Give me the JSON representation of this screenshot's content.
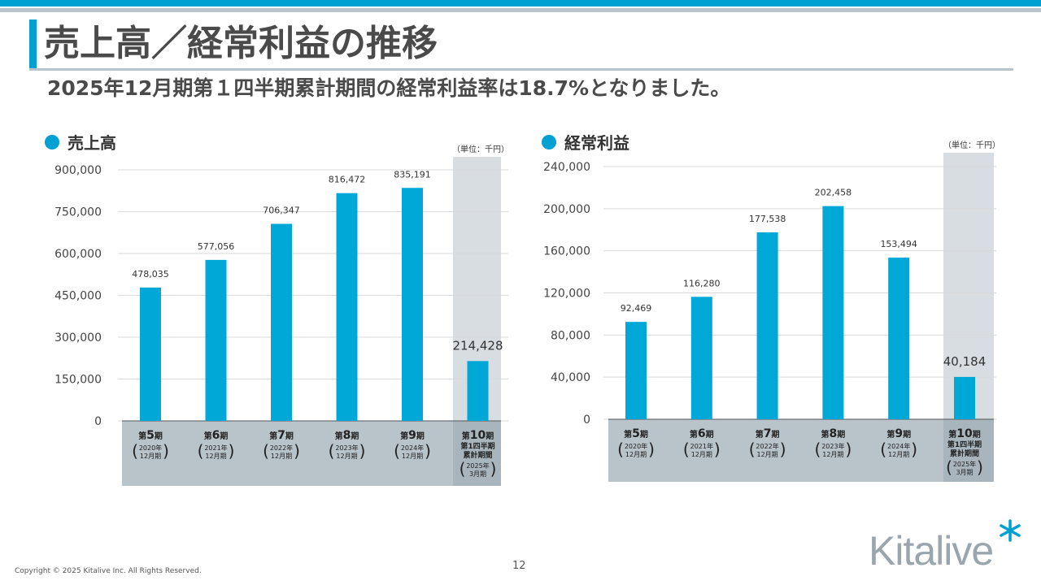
{
  "header": {
    "title": "売上高／経常利益の推移",
    "subtitle": "2025年12月期第１四半期累計期間の経常利益率は18.7%となりました。"
  },
  "colors": {
    "accent": "#00a0d2",
    "bar": "#00a8d8",
    "axis_band": "#b9c3ca",
    "highlight_band": "#d7dde1"
  },
  "footer": {
    "copyright": "Copyright © 2025 Kitalive Inc. All Rights Reserved.",
    "page_number": "12",
    "logo": "Kitalive"
  },
  "categories": [
    {
      "prefix": "第",
      "num": "5",
      "suffix": "期",
      "detail": [
        "2020年",
        "12月期"
      ]
    },
    {
      "prefix": "第",
      "num": "6",
      "suffix": "期",
      "detail": [
        "2021年",
        "12月期"
      ]
    },
    {
      "prefix": "第",
      "num": "7",
      "suffix": "期",
      "detail": [
        "2022年",
        "12月期"
      ]
    },
    {
      "prefix": "第",
      "num": "8",
      "suffix": "期",
      "detail": [
        "2023年",
        "12月期"
      ]
    },
    {
      "prefix": "第",
      "num": "9",
      "suffix": "期",
      "detail": [
        "2024年",
        "12月期"
      ]
    },
    {
      "prefix": "第",
      "num": "10",
      "suffix": "期",
      "extra": [
        "第1四半期",
        "累計期間"
      ],
      "detail": [
        "2025年",
        "3月期"
      ]
    }
  ],
  "chart_data": [
    {
      "type": "bar",
      "title": "売上高",
      "unit": "（単位：千円）",
      "categories": [
        "第5期",
        "第6期",
        "第7期",
        "第8期",
        "第9期",
        "第10期 第1四半期累計期間"
      ],
      "values": [
        478035,
        577056,
        706347,
        816472,
        835191,
        214428
      ],
      "value_labels": [
        "478,035",
        "577,056",
        "706,347",
        "816,472",
        "835,191",
        "214,428"
      ],
      "ylim": [
        0,
        900000
      ],
      "yticks": [
        0,
        150000,
        300000,
        450000,
        600000,
        750000,
        900000
      ],
      "ytick_labels": [
        "0",
        "150,000",
        "300,000",
        "450,000",
        "600,000",
        "750,000",
        "900,000"
      ],
      "highlight_last": true,
      "grid": true
    },
    {
      "type": "bar",
      "title": "経常利益",
      "unit": "（単位：千円）",
      "categories": [
        "第5期",
        "第6期",
        "第7期",
        "第8期",
        "第9期",
        "第10期 第1四半期累計期間"
      ],
      "values": [
        92469,
        116280,
        177538,
        202458,
        153494,
        40184
      ],
      "value_labels": [
        "92,469",
        "116,280",
        "177,538",
        "202,458",
        "153,494",
        "40,184"
      ],
      "ylim": [
        0,
        240000
      ],
      "yticks": [
        0,
        40000,
        80000,
        120000,
        160000,
        200000,
        240000
      ],
      "ytick_labels": [
        "0",
        "40,000",
        "80,000",
        "120,000",
        "160,000",
        "200,000",
        "240,000"
      ],
      "highlight_last": true,
      "grid": true
    }
  ]
}
